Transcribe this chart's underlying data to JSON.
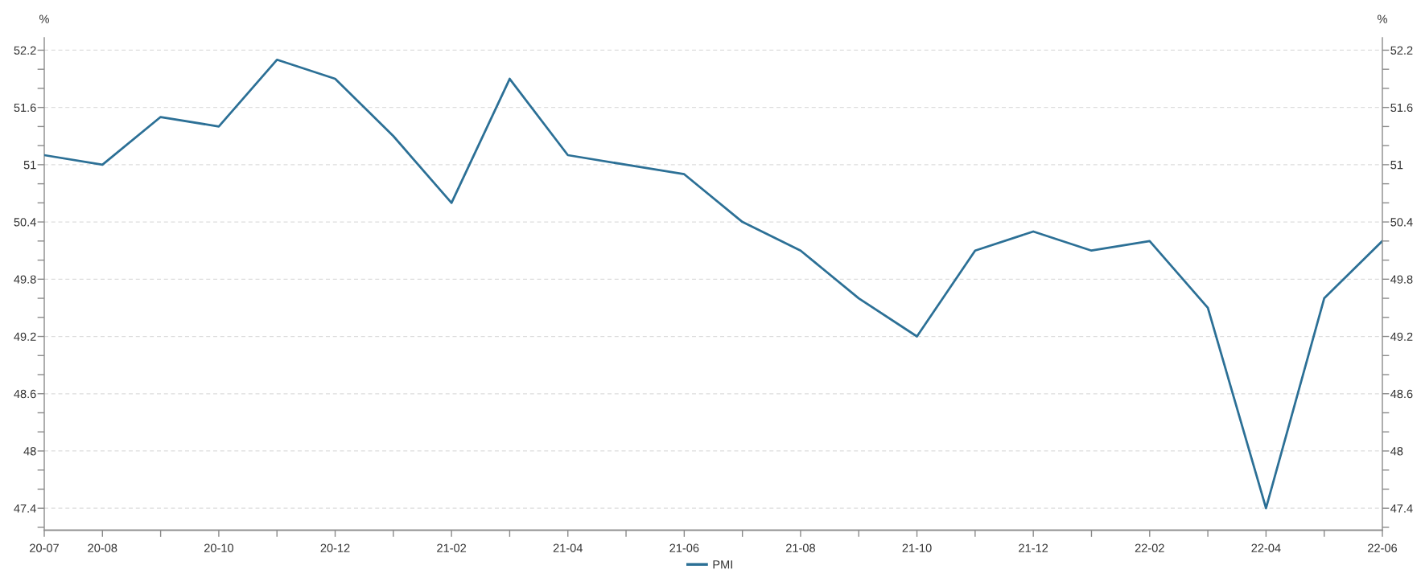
{
  "chart_data": {
    "type": "line",
    "ylabel": "%",
    "y2label": "%",
    "categories": [
      "20-07",
      "20-08",
      null,
      "20-10",
      null,
      "20-12",
      null,
      "21-02",
      null,
      "21-04",
      null,
      "21-06",
      null,
      "21-08",
      null,
      "21-10",
      null,
      "21-12",
      null,
      "22-02",
      null,
      "22-04",
      null,
      "22-06"
    ],
    "series": [
      {
        "name": "PMI",
        "color": "#2c7096",
        "values": [
          51.1,
          51.0,
          51.5,
          51.4,
          52.1,
          51.9,
          51.3,
          50.6,
          51.9,
          51.1,
          51.0,
          50.9,
          50.4,
          50.1,
          49.6,
          49.2,
          50.1,
          50.3,
          50.1,
          50.2,
          49.5,
          47.4,
          49.6,
          50.2
        ]
      }
    ],
    "ylim": [
      47.17,
      52.33
    ],
    "yticks": [
      {
        "value": 47.2,
        "label": null
      },
      47.4,
      {
        "value": 47.6,
        "label": null
      },
      {
        "value": 47.8,
        "label": null
      },
      48,
      {
        "value": 48.2,
        "label": null
      },
      {
        "value": 48.4,
        "label": null
      },
      48.6,
      {
        "value": 48.8,
        "label": null
      },
      {
        "value": 49.0,
        "label": null
      },
      49.2,
      {
        "value": 49.4,
        "label": null
      },
      {
        "value": 49.6,
        "label": null
      },
      49.8,
      {
        "value": 50.0,
        "label": null
      },
      {
        "value": 50.2,
        "label": null
      },
      50.4,
      {
        "value": 50.6,
        "label": null
      },
      {
        "value": 50.8,
        "label": null
      },
      51,
      {
        "value": 51.2,
        "label": null
      },
      {
        "value": 51.4,
        "label": null
      },
      51.6,
      {
        "value": 51.8,
        "label": null
      },
      {
        "value": 52.0,
        "label": null
      },
      52.2
    ],
    "y2lim": [
      47.17,
      52.33
    ],
    "y2ticks": [
      {
        "value": 47.2,
        "label": null
      },
      47.4,
      {
        "value": 47.6,
        "label": null
      },
      {
        "value": 47.8,
        "label": null
      },
      48,
      {
        "value": 48.2,
        "label": null
      },
      {
        "value": 48.4,
        "label": null
      },
      48.6,
      {
        "value": 48.8,
        "label": null
      },
      {
        "value": 49.0,
        "label": null
      },
      49.2,
      {
        "value": 49.4,
        "label": null
      },
      {
        "value": 49.6,
        "label": null
      },
      49.8,
      {
        "value": 50.0,
        "label": null
      },
      {
        "value": 50.2,
        "label": null
      },
      50.4,
      {
        "value": 50.6,
        "label": null
      },
      {
        "value": 50.8,
        "label": null
      },
      51,
      {
        "value": 51.2,
        "label": null
      },
      {
        "value": 51.4,
        "label": null
      },
      51.6,
      {
        "value": 51.8,
        "label": null
      },
      {
        "value": 52.0,
        "label": null
      },
      52.2
    ],
    "grid": "y",
    "legend": "bottom",
    "marker": "none",
    "line_style": "solid"
  }
}
